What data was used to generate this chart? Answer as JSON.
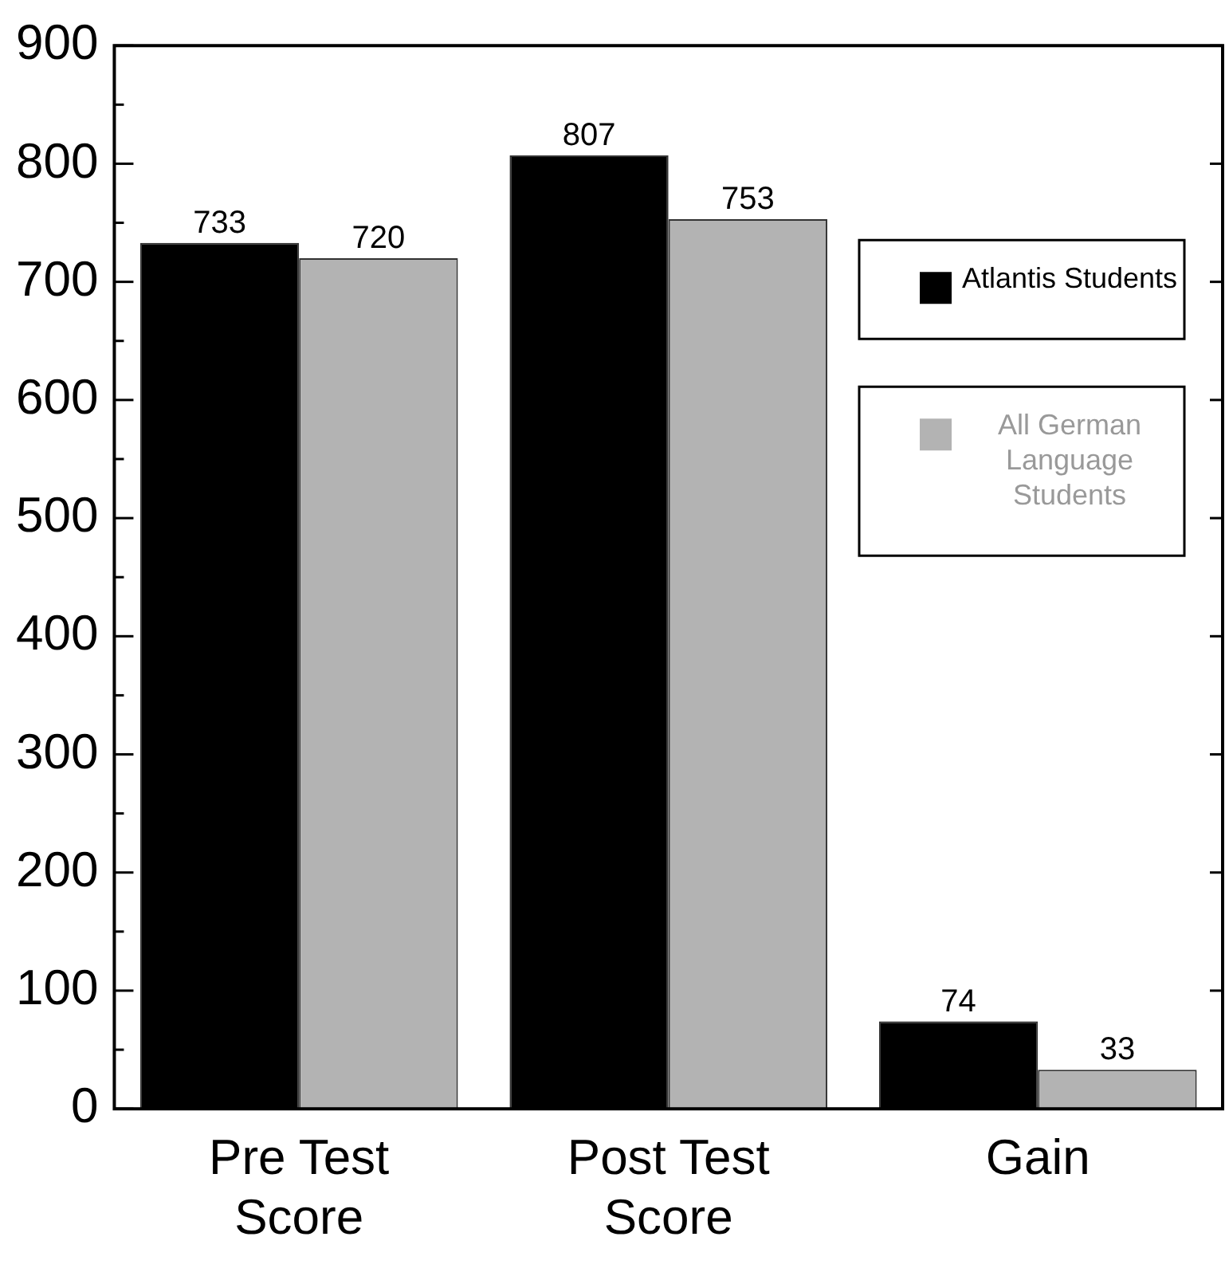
{
  "chart_data": {
    "type": "bar",
    "categories": [
      "Pre Test Score",
      "Post Test Score",
      "Gain"
    ],
    "series": [
      {
        "name": "Atlantis Students",
        "color": "#000000",
        "values": [
          733,
          807,
          74
        ]
      },
      {
        "name": "All German Language Students",
        "color": "#b3b3b3",
        "values": [
          720,
          753,
          33
        ]
      }
    ],
    "ylim": [
      0,
      900
    ],
    "yticks": [
      0,
      100,
      200,
      300,
      400,
      500,
      600,
      700,
      800,
      900
    ],
    "grid": false,
    "legend": "right",
    "data_labels": true
  }
}
